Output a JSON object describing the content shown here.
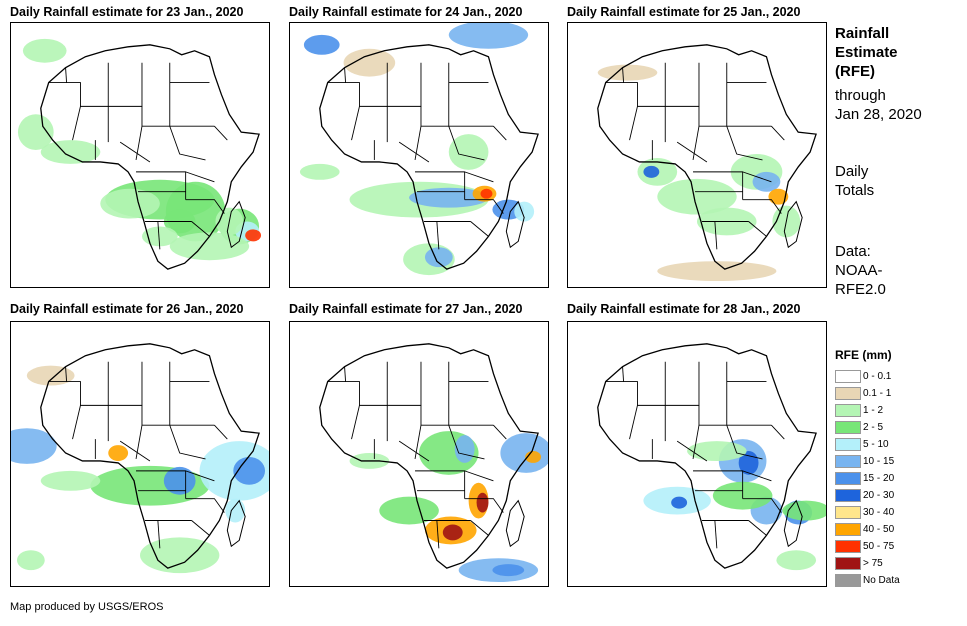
{
  "panels": [
    {
      "title": "Daily Rainfall estimate for 23 Jan., 2020",
      "date": "23 Jan."
    },
    {
      "title": "Daily Rainfall estimate for 24 Jan., 2020",
      "date": "24 Jan."
    },
    {
      "title": "Daily Rainfall estimate for 25 Jan., 2020",
      "date": "25 Jan."
    },
    {
      "title": "Daily Rainfall estimate for 26 Jan., 2020",
      "date": "26 Jan."
    },
    {
      "title": "Daily Rainfall estimate for 27 Jan., 2020",
      "date": "27 Jan."
    },
    {
      "title": "Daily Rainfall estimate for 28 Jan., 2020",
      "date": "28 Jan."
    }
  ],
  "sidebar": {
    "title_line1": "Rainfall",
    "title_line2": "Estimate",
    "title_line3": "(RFE)",
    "through_label": "through",
    "through_date": "Jan 28, 2020",
    "daily_line1": "Daily",
    "daily_line2": "Totals",
    "data_line1": "Data:",
    "data_line2": "NOAA-",
    "data_line3": "RFE2.0"
  },
  "legend": {
    "title": "RFE (mm)",
    "items": [
      {
        "label": "0 - 0.1",
        "color": "#ffffff"
      },
      {
        "label": "0.1 - 1",
        "color": "#e8d6b5"
      },
      {
        "label": "1 - 2",
        "color": "#b4f5b4"
      },
      {
        "label": "2 - 5",
        "color": "#78e678"
      },
      {
        "label": "5 - 10",
        "color": "#b4f0fa"
      },
      {
        "label": "10 - 15",
        "color": "#78b4f0"
      },
      {
        "label": "15 - 20",
        "color": "#4b91eb"
      },
      {
        "label": "20 - 30",
        "color": "#1e64dc"
      },
      {
        "label": "30 - 40",
        "color": "#ffe68c"
      },
      {
        "label": "40 - 50",
        "color": "#ffa500"
      },
      {
        "label": "50 - 75",
        "color": "#ff3200"
      },
      {
        "label": "> 75",
        "color": "#a01414"
      },
      {
        "label": "No Data",
        "color": "#999999"
      }
    ]
  },
  "footer": "Map produced by USGS/EROS"
}
